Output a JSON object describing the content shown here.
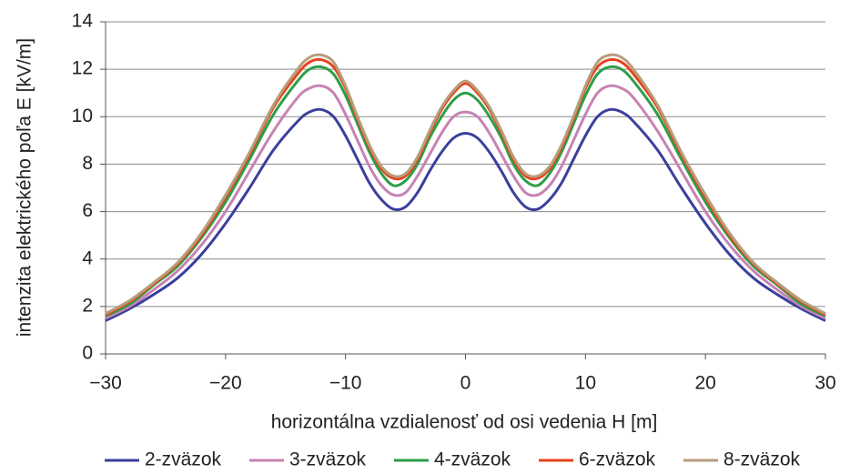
{
  "chart_data": {
    "type": "line",
    "y_label": "intenzita elektrického poľa E [kV/m]",
    "x_label": "horizontálna vzdialenosť od osi vedenia H [m]",
    "x": [
      -30,
      -28,
      -26,
      -24,
      -22,
      -20,
      -18,
      -16,
      -14,
      -13,
      -12,
      -11,
      -10,
      -9,
      -8,
      -7,
      -6,
      -5,
      -4,
      -3,
      -2,
      -1,
      0,
      1,
      2,
      3,
      4,
      5,
      6,
      7,
      8,
      9,
      10,
      11,
      12,
      13,
      14,
      16,
      18,
      20,
      22,
      24,
      26,
      28,
      30
    ],
    "series": [
      {
        "name": "2-zväzok",
        "color": "#3b3f9c",
        "values": [
          1.4,
          1.9,
          2.5,
          3.2,
          4.2,
          5.5,
          7.0,
          8.6,
          9.8,
          10.2,
          10.3,
          10.0,
          9.2,
          8.2,
          7.2,
          6.5,
          6.1,
          6.2,
          6.8,
          7.7,
          8.5,
          9.1,
          9.3,
          9.1,
          8.5,
          7.7,
          6.8,
          6.2,
          6.1,
          6.5,
          7.2,
          8.2,
          9.2,
          10.0,
          10.3,
          10.2,
          9.8,
          8.6,
          7.0,
          5.5,
          4.2,
          3.2,
          2.5,
          1.9,
          1.4
        ]
      },
      {
        "name": "3-zväzok",
        "color": "#c683b2",
        "values": [
          1.5,
          2.0,
          2.7,
          3.5,
          4.6,
          6.0,
          7.7,
          9.4,
          10.8,
          11.2,
          11.3,
          11.0,
          10.1,
          9.0,
          7.9,
          7.1,
          6.7,
          6.8,
          7.5,
          8.4,
          9.3,
          10.0,
          10.2,
          10.0,
          9.3,
          8.4,
          7.5,
          6.8,
          6.7,
          7.1,
          7.9,
          9.0,
          10.1,
          11.0,
          11.3,
          11.2,
          10.8,
          9.4,
          7.7,
          6.0,
          4.6,
          3.5,
          2.7,
          2.0,
          1.5
        ]
      },
      {
        "name": "4-zväzok",
        "color": "#2d9e48",
        "values": [
          1.6,
          2.1,
          2.9,
          3.7,
          4.9,
          6.4,
          8.2,
          10.1,
          11.5,
          12.0,
          12.1,
          11.8,
          10.9,
          9.7,
          8.5,
          7.6,
          7.1,
          7.3,
          8.0,
          9.1,
          10.0,
          10.7,
          11.0,
          10.7,
          10.0,
          9.1,
          8.0,
          7.3,
          7.1,
          7.6,
          8.5,
          9.7,
          10.9,
          11.8,
          12.1,
          12.0,
          11.5,
          10.1,
          8.2,
          6.4,
          4.9,
          3.7,
          2.9,
          2.1,
          1.6
        ]
      },
      {
        "name": "6-zväzok",
        "color": "#e6431e",
        "values": [
          1.65,
          2.2,
          2.95,
          3.8,
          5.0,
          6.6,
          8.4,
          10.4,
          11.8,
          12.3,
          12.4,
          12.1,
          11.2,
          9.9,
          8.7,
          7.8,
          7.4,
          7.5,
          8.2,
          9.3,
          10.3,
          11.0,
          11.4,
          11.0,
          10.3,
          9.3,
          8.2,
          7.5,
          7.4,
          7.8,
          8.7,
          9.9,
          11.2,
          12.1,
          12.4,
          12.3,
          11.8,
          10.4,
          8.4,
          6.6,
          5.0,
          3.8,
          2.95,
          2.2,
          1.65
        ]
      },
      {
        "name": "8-zväzok",
        "color": "#b89d7c",
        "values": [
          1.7,
          2.25,
          3.0,
          3.85,
          5.1,
          6.7,
          8.5,
          10.5,
          12.0,
          12.5,
          12.6,
          12.3,
          11.3,
          10.0,
          8.8,
          7.9,
          7.5,
          7.6,
          8.3,
          9.4,
          10.4,
          11.1,
          11.5,
          11.1,
          10.4,
          9.4,
          8.3,
          7.6,
          7.5,
          7.9,
          8.8,
          10.0,
          11.3,
          12.3,
          12.6,
          12.5,
          12.0,
          10.5,
          8.5,
          6.7,
          5.1,
          3.85,
          3.0,
          2.25,
          1.7
        ]
      }
    ],
    "xlim": [
      -30,
      30
    ],
    "xticks": [
      {
        "value": -30,
        "label": "−30"
      },
      {
        "value": -20,
        "label": "−20"
      },
      {
        "value": -10,
        "label": "−10"
      },
      0,
      10,
      20,
      30
    ],
    "ylim": [
      0,
      14
    ],
    "yticks": [
      0,
      2,
      4,
      6,
      8,
      10,
      12,
      14
    ],
    "grid": true,
    "legend": "bottom"
  }
}
